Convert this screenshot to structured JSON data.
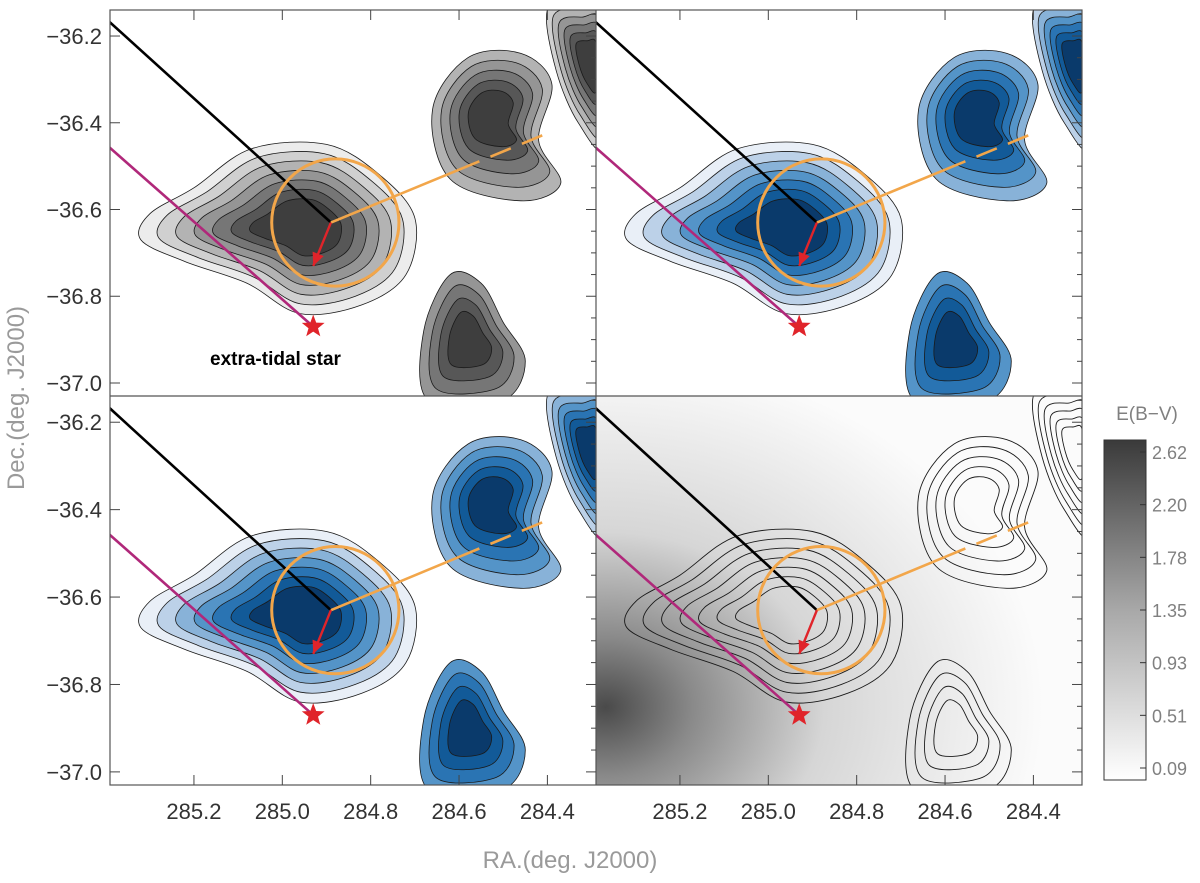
{
  "chart_data": {
    "type": "heatmap",
    "xlabel": "RA.(deg. J2000)",
    "ylabel": "Dec.(deg. J2000)",
    "xlim": [
      285.39,
      284.29
    ],
    "ylim": [
      -37.03,
      -36.14
    ],
    "x_ticks": [
      "285.2",
      "285.0",
      "284.8",
      "284.6",
      "284.4"
    ],
    "x_tick_values": [
      285.2,
      285.0,
      284.8,
      284.6,
      284.4
    ],
    "y_ticks": [
      "−36.2",
      "−36.4",
      "−36.6",
      "−36.8",
      "−37.0"
    ],
    "y_tick_values": [
      -36.2,
      -36.4,
      -36.6,
      -36.8,
      -37.0
    ],
    "panels": [
      {
        "position": "top-left",
        "style": "grayscale-density-with-contours"
      },
      {
        "position": "top-right",
        "style": "blue-filled-contours"
      },
      {
        "position": "bottom-left",
        "style": "blue-filled-contours-smoothed"
      },
      {
        "position": "bottom-right",
        "style": "extinction-map-with-contours"
      }
    ],
    "cluster_center": {
      "ra": 284.89,
      "dec": -36.63
    },
    "tidal_radius_deg": 0.144,
    "extra_tidal_star": {
      "ra": 284.93,
      "dec": -36.87
    },
    "annotation": "extra-tidal star",
    "colorbar": {
      "label": "E(B−V)",
      "ticks": [
        "2.62",
        "2.20",
        "1.78",
        "1.35",
        "0.93",
        "0.51",
        "0.09"
      ],
      "range": [
        0.09,
        2.62
      ]
    },
    "colors": {
      "tidal_circle": "#f2a64a",
      "proper_motion_arrow": "#e0242a",
      "black_line": "#000000",
      "magenta_line": "#b0287a",
      "star": "#e0242a",
      "blue_levels": [
        "#e9eff7",
        "#bcd1e8",
        "#88b2d8",
        "#5494c8",
        "#2a74b3",
        "#125a98",
        "#0a3a6b"
      ],
      "gray_levels": [
        "#ececec",
        "#d0d0d0",
        "#b3b3b3",
        "#959595",
        "#767676",
        "#575757",
        "#3e3e3e"
      ]
    }
  }
}
